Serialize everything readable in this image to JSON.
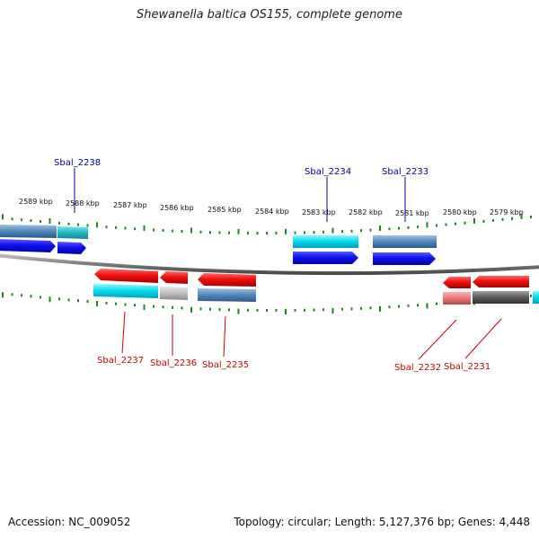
{
  "title": "Shewanella baltica OS155, complete genome",
  "footer": {
    "accession": "Accession: NC_009052",
    "stats": "Topology: circular; Length: 5,127,376 bp; Genes: 4,448"
  },
  "colors": {
    "backbone": "#888888",
    "tick": "#1a8a1a",
    "cds_forward": "#0000ee",
    "cds_reverse": "#ee0000",
    "gene_cyan": "#00d8e8",
    "gene_steel": "#4f86b8",
    "gene_grey": "#b8b8b8",
    "gene_dark": "#5a5a5a",
    "gene_pink": "#e87878",
    "label_forward": "#00009c",
    "label_reverse": "#cc0000"
  },
  "scale_labels": [
    "2589 kbp",
    "2588 kbp",
    "2587 kbp",
    "2586 kbp",
    "2585 kbp",
    "2584 kbp",
    "2583 kbp",
    "2582 kbp",
    "2581 kbp",
    "2580 kbp",
    "2579 kbp"
  ],
  "genes_top": [
    "Sbal_2238",
    "Sbal_2234",
    "Sbal_2233"
  ],
  "genes_bottom": [
    "Sbal_2237",
    "Sbal_2236",
    "Sbal_2235",
    "Sbal_2232",
    "Sbal_2231"
  ]
}
